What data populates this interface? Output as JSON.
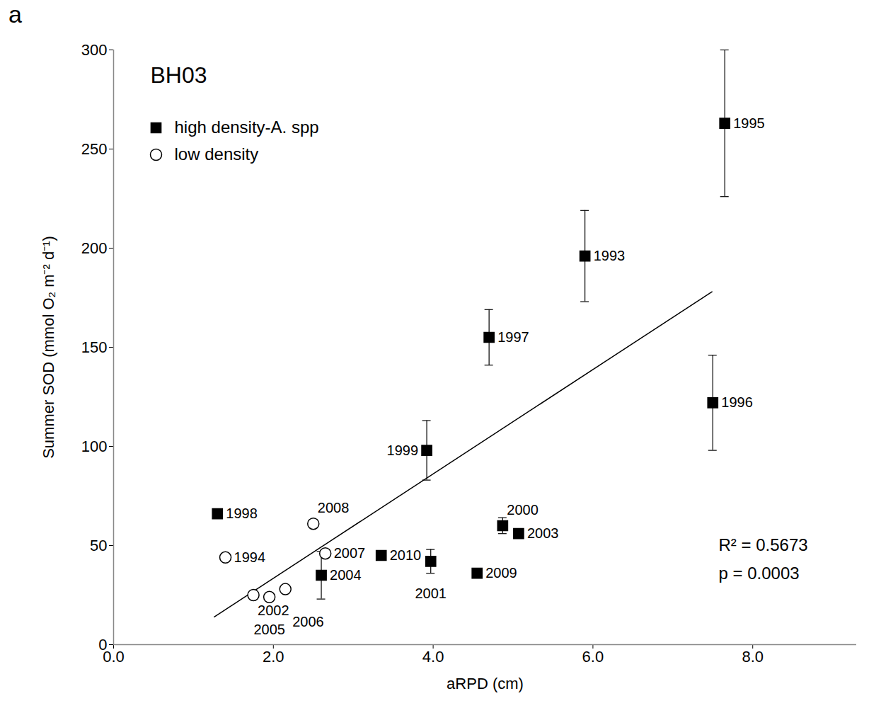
{
  "chart_data": {
    "type": "scatter",
    "panel_label": "a",
    "title": "BH03",
    "x_label": "aRPD (cm)",
    "y_label": "Summer SOD (mmol O₂ m⁻² d⁻¹)",
    "xlim": [
      0,
      9.3
    ],
    "xticks": [
      {
        "value": 0,
        "label": "0.0"
      },
      {
        "value": 2,
        "label": "2.0"
      },
      {
        "value": 4,
        "label": "4.0"
      },
      {
        "value": 6,
        "label": "6.0"
      },
      {
        "value": 8,
        "label": "8.0"
      }
    ],
    "ylim": [
      0,
      300
    ],
    "yticks": [
      0,
      50,
      100,
      150,
      200,
      250,
      300
    ],
    "grid": false,
    "legend": "upper left",
    "series": [
      {
        "name": "high density-A. spp",
        "marker": "filled square",
        "color": "#000000",
        "labels": [
          "1995",
          "1993",
          "1997",
          "1999",
          "1996",
          "1998",
          "2010",
          "2004",
          "2001",
          "2009",
          "2000",
          "2003"
        ],
        "x": [
          7.65,
          5.9,
          4.7,
          3.92,
          7.5,
          1.3,
          3.35,
          2.6,
          3.97,
          4.55,
          4.87,
          5.07
        ],
        "values": [
          263,
          196,
          155,
          98,
          122,
          66,
          45,
          35,
          42,
          36,
          60,
          56
        ],
        "errors": [
          37,
          23,
          14,
          15,
          24,
          null,
          null,
          12,
          6,
          null,
          4,
          null
        ]
      },
      {
        "name": "low density",
        "marker": "open circle",
        "color": "#000000",
        "labels": [
          "2008",
          "1994",
          "2007",
          "2002",
          "2005",
          "2006"
        ],
        "x": [
          2.5,
          1.4,
          2.65,
          1.75,
          1.95,
          2.15
        ],
        "values": [
          61,
          44,
          46,
          25,
          24,
          28
        ]
      }
    ],
    "fit_line": {
      "x": [
        1.26,
        7.49
      ],
      "y": [
        14,
        178
      ]
    },
    "annotations": [
      "R² = 0.5673",
      "p = 0.0003"
    ]
  }
}
